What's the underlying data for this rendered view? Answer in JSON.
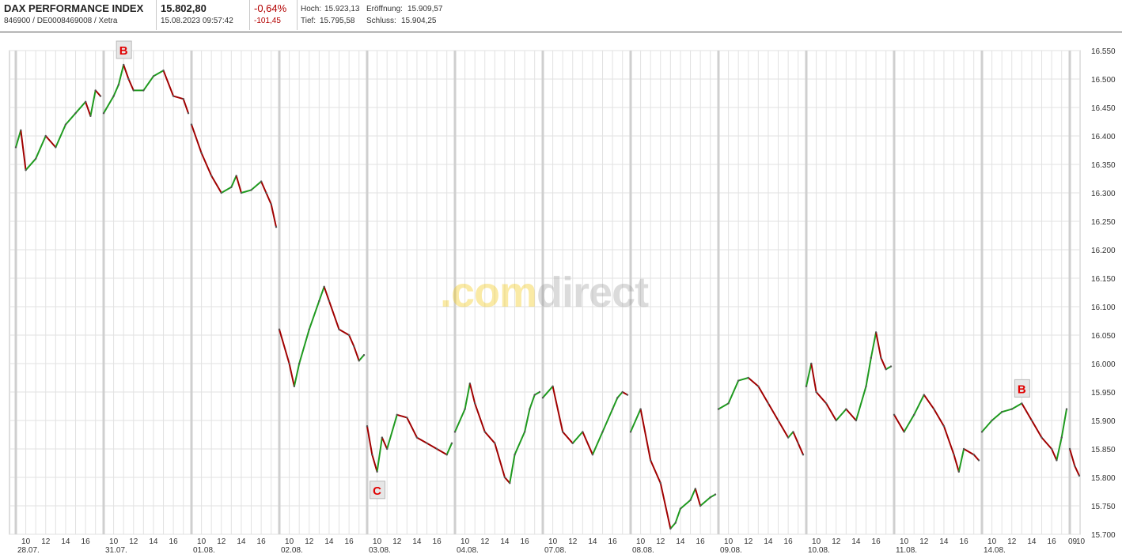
{
  "header": {
    "title": "DAX PERFORMANCE INDEX",
    "ids": "846900 / DE0008469008 / Xetra",
    "price": "15.802,80",
    "datetime": "15.08.2023 09:57:42",
    "change_pct": "-0,64%",
    "change_abs": "-101,45",
    "high_label": "Hoch:",
    "high": "15.923,13",
    "open_label": "Eröffnung:",
    "open": "15.909,57",
    "low_label": "Tief:",
    "low": "15.795,58",
    "close_label": "Schluss:",
    "close": "15.904,25"
  },
  "watermark": {
    "part1": ".com",
    "part2": "direct"
  },
  "colors": {
    "up": "#1f9a1f",
    "down": "#a00000",
    "marker_text": "#e00000",
    "grid": "#e2e2e2",
    "day_sep": "#cfcfcf"
  },
  "chart_data": {
    "type": "line",
    "title": "",
    "xlabel": "",
    "ylabel": "",
    "ylim": [
      15700,
      16550
    ],
    "y_ticks": [
      "16.550",
      "16.500",
      "16.450",
      "16.400",
      "16.350",
      "16.300",
      "16.250",
      "16.200",
      "16.150",
      "16.100",
      "16.050",
      "16.000",
      "15.950",
      "15.900",
      "15.850",
      "15.800",
      "15.750",
      "15.700"
    ],
    "day_labels": [
      "28.07.",
      "31.07.",
      "01.08.",
      "02.08.",
      "03.08.",
      "04.08.",
      "07.08.",
      "08.08.",
      "09.08.",
      "10.08.",
      "11.08.",
      "14.08."
    ],
    "hour_labels": [
      "10",
      "12",
      "14",
      "16"
    ],
    "last_day_labels": [
      "09",
      "10"
    ],
    "series": [
      {
        "name": "",
        "points": [
          [
            "28.07. 09:00",
            16380
          ],
          [
            "28.07. 09:30",
            16410
          ],
          [
            "28.07. 10:00",
            16340
          ],
          [
            "28.07. 11:00",
            16360
          ],
          [
            "28.07. 12:00",
            16400
          ],
          [
            "28.07. 13:00",
            16380
          ],
          [
            "28.07. 14:00",
            16420
          ],
          [
            "28.07. 15:00",
            16440
          ],
          [
            "28.07. 16:00",
            16460
          ],
          [
            "28.07. 16:30",
            16435
          ],
          [
            "28.07. 17:00",
            16480
          ],
          [
            "28.07. 17:30",
            16470
          ],
          [
            "31.07. 09:00",
            16440
          ],
          [
            "31.07. 10:00",
            16470
          ],
          [
            "31.07. 10:30",
            16490
          ],
          [
            "31.07. 11:00",
            16525
          ],
          [
            "31.07. 11:30",
            16500
          ],
          [
            "31.07. 12:00",
            16480
          ],
          [
            "31.07. 13:00",
            16480
          ],
          [
            "31.07. 14:00",
            16505
          ],
          [
            "31.07. 15:00",
            16515
          ],
          [
            "31.07. 16:00",
            16470
          ],
          [
            "31.07. 17:00",
            16465
          ],
          [
            "31.07. 17:30",
            16440
          ],
          [
            "01.08. 09:00",
            16420
          ],
          [
            "01.08. 10:00",
            16370
          ],
          [
            "01.08. 11:00",
            16330
          ],
          [
            "01.08. 12:00",
            16300
          ],
          [
            "01.08. 13:00",
            16310
          ],
          [
            "01.08. 13:30",
            16330
          ],
          [
            "01.08. 14:00",
            16300
          ],
          [
            "01.08. 15:00",
            16305
          ],
          [
            "01.08. 16:00",
            16320
          ],
          [
            "01.08. 16:30",
            16300
          ],
          [
            "01.08. 17:00",
            16280
          ],
          [
            "01.08. 17:30",
            16240
          ],
          [
            "02.08. 09:00",
            16060
          ],
          [
            "02.08. 10:00",
            16000
          ],
          [
            "02.08. 10:30",
            15960
          ],
          [
            "02.08. 11:00",
            16000
          ],
          [
            "02.08. 12:00",
            16060
          ],
          [
            "02.08. 13:00",
            16110
          ],
          [
            "02.08. 13:30",
            16135
          ],
          [
            "02.08. 14:00",
            16110
          ],
          [
            "02.08. 15:00",
            16060
          ],
          [
            "02.08. 16:00",
            16050
          ],
          [
            "02.08. 16:30",
            16030
          ],
          [
            "02.08. 17:00",
            16005
          ],
          [
            "02.08. 17:30",
            16015
          ],
          [
            "03.08. 09:00",
            15890
          ],
          [
            "03.08. 09:30",
            15840
          ],
          [
            "03.08. 10:00",
            15810
          ],
          [
            "03.08. 10:30",
            15870
          ],
          [
            "03.08. 11:00",
            15850
          ],
          [
            "03.08. 12:00",
            15910
          ],
          [
            "03.08. 13:00",
            15905
          ],
          [
            "03.08. 14:00",
            15870
          ],
          [
            "03.08. 15:00",
            15860
          ],
          [
            "03.08. 16:00",
            15850
          ],
          [
            "03.08. 17:00",
            15840
          ],
          [
            "03.08. 17:30",
            15860
          ],
          [
            "04.08. 09:00",
            15880
          ],
          [
            "04.08. 10:00",
            15920
          ],
          [
            "04.08. 10:30",
            15965
          ],
          [
            "04.08. 11:00",
            15930
          ],
          [
            "04.08. 12:00",
            15880
          ],
          [
            "04.08. 13:00",
            15860
          ],
          [
            "04.08. 14:00",
            15800
          ],
          [
            "04.08. 14:30",
            15790
          ],
          [
            "04.08. 15:00",
            15840
          ],
          [
            "04.08. 16:00",
            15880
          ],
          [
            "04.08. 16:30",
            15920
          ],
          [
            "04.08. 17:00",
            15945
          ],
          [
            "04.08. 17:30",
            15950
          ],
          [
            "07.08. 09:00",
            15940
          ],
          [
            "07.08. 10:00",
            15960
          ],
          [
            "07.08. 11:00",
            15880
          ],
          [
            "07.08. 12:00",
            15860
          ],
          [
            "07.08. 13:00",
            15880
          ],
          [
            "07.08. 14:00",
            15840
          ],
          [
            "07.08. 15:00",
            15880
          ],
          [
            "07.08. 16:00",
            15920
          ],
          [
            "07.08. 16:30",
            15940
          ],
          [
            "07.08. 17:00",
            15950
          ],
          [
            "07.08. 17:30",
            15945
          ],
          [
            "08.08. 09:00",
            15880
          ],
          [
            "08.08. 10:00",
            15920
          ],
          [
            "08.08. 11:00",
            15830
          ],
          [
            "08.08. 12:00",
            15790
          ],
          [
            "08.08. 13:00",
            15710
          ],
          [
            "08.08. 13:30",
            15720
          ],
          [
            "08.08. 14:00",
            15745
          ],
          [
            "08.08. 15:00",
            15760
          ],
          [
            "08.08. 15:30",
            15780
          ],
          [
            "08.08. 16:00",
            15750
          ],
          [
            "08.08. 17:00",
            15765
          ],
          [
            "08.08. 17:30",
            15770
          ],
          [
            "09.08. 09:00",
            15920
          ],
          [
            "09.08. 10:00",
            15930
          ],
          [
            "09.08. 11:00",
            15970
          ],
          [
            "09.08. 12:00",
            15975
          ],
          [
            "09.08. 13:00",
            15960
          ],
          [
            "09.08. 14:00",
            15930
          ],
          [
            "09.08. 15:00",
            15900
          ],
          [
            "09.08. 16:00",
            15870
          ],
          [
            "09.08. 16:30",
            15880
          ],
          [
            "09.08. 17:00",
            15860
          ],
          [
            "09.08. 17:30",
            15840
          ],
          [
            "10.08. 09:00",
            15960
          ],
          [
            "10.08. 09:30",
            16000
          ],
          [
            "10.08. 10:00",
            15950
          ],
          [
            "10.08. 11:00",
            15930
          ],
          [
            "10.08. 12:00",
            15900
          ],
          [
            "10.08. 13:00",
            15920
          ],
          [
            "10.08. 14:00",
            15900
          ],
          [
            "10.08. 15:00",
            15960
          ],
          [
            "10.08. 15:30",
            16010
          ],
          [
            "10.08. 16:00",
            16055
          ],
          [
            "10.08. 16:30",
            16010
          ],
          [
            "10.08. 17:00",
            15990
          ],
          [
            "10.08. 17:30",
            15995
          ],
          [
            "11.08. 09:00",
            15910
          ],
          [
            "11.08. 10:00",
            15880
          ],
          [
            "11.08. 11:00",
            15910
          ],
          [
            "11.08. 12:00",
            15945
          ],
          [
            "11.08. 13:00",
            15920
          ],
          [
            "11.08. 14:00",
            15890
          ],
          [
            "11.08. 15:00",
            15840
          ],
          [
            "11.08. 15:30",
            15810
          ],
          [
            "11.08. 16:00",
            15850
          ],
          [
            "11.08. 17:00",
            15840
          ],
          [
            "11.08. 17:30",
            15830
          ],
          [
            "14.08. 09:00",
            15880
          ],
          [
            "14.08. 10:00",
            15900
          ],
          [
            "14.08. 11:00",
            15915
          ],
          [
            "14.08. 12:00",
            15920
          ],
          [
            "14.08. 13:00",
            15930
          ],
          [
            "14.08. 14:00",
            15900
          ],
          [
            "14.08. 15:00",
            15870
          ],
          [
            "14.08. 16:00",
            15850
          ],
          [
            "14.08. 16:30",
            15830
          ],
          [
            "14.08. 17:00",
            15870
          ],
          [
            "14.08. 17:30",
            15920
          ],
          [
            "15.08. 09:00",
            15850
          ],
          [
            "15.08. 09:30",
            15820
          ],
          [
            "15.08. 09:57",
            15803
          ]
        ]
      }
    ],
    "annotations": [
      {
        "label": "B",
        "at": "31.07. 11:00",
        "y": 16525
      },
      {
        "label": "C",
        "at": "03.08. 10:00",
        "y": 15810
      },
      {
        "label": "B",
        "at": "14.08. 13:00",
        "y": 15930
      }
    ],
    "grid": true,
    "legend": "none"
  }
}
